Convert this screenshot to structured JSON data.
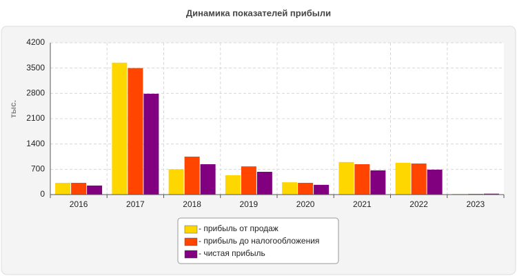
{
  "chart_data": {
    "type": "bar",
    "title": "Динамика показателей прибыли",
    "y_label": "тыс.",
    "categories": [
      "2016",
      "2017",
      "2018",
      "2019",
      "2020",
      "2021",
      "2022",
      "2023"
    ],
    "series": [
      {
        "name": "- прибыль от продаж",
        "color": "#ffd700",
        "values": [
          325,
          3650,
          700,
          535,
          340,
          900,
          880,
          20
        ]
      },
      {
        "name": "- прибыль до налогообложения",
        "color": "#ff4500",
        "values": [
          325,
          3500,
          1050,
          780,
          325,
          840,
          860,
          20
        ]
      },
      {
        "name": "- чистая прибыль",
        "color": "#800080",
        "values": [
          250,
          2790,
          840,
          630,
          270,
          670,
          690,
          25
        ]
      }
    ],
    "ylim": [
      0,
      4200
    ],
    "yticks": [
      0,
      700,
      1400,
      2100,
      2800,
      3500,
      4200
    ],
    "grid": true,
    "legend": "bottom"
  }
}
